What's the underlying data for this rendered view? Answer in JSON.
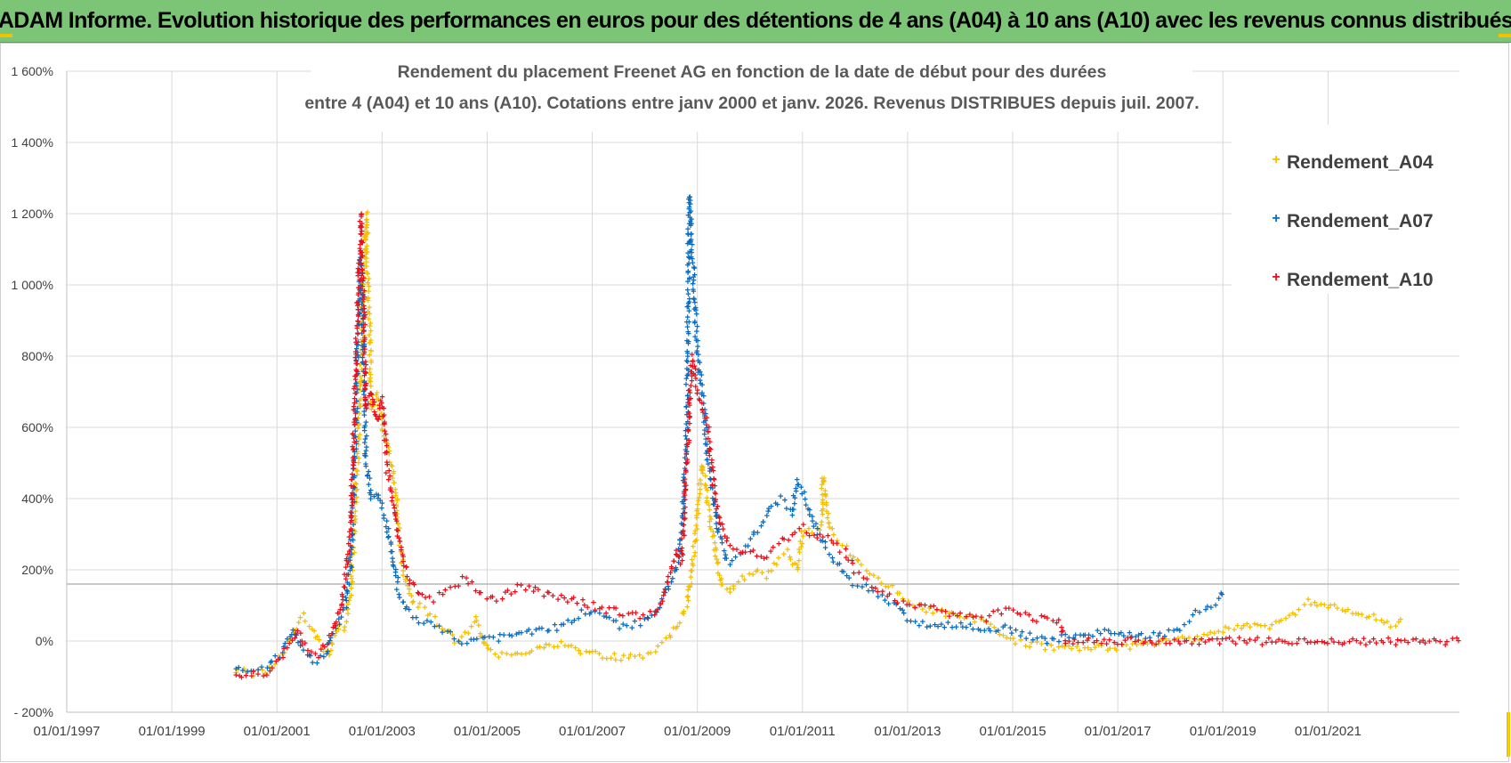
{
  "banner": {
    "text": "ADAM Informe. Evolution historique des performances en euros pour des détentions de 4 ans (A04) à 10 ans (A10) avec les revenus connus distribués"
  },
  "colors": {
    "banner_bg": "#7cc576",
    "corner_accent": "#f2c200",
    "A04": "#f5bf00",
    "A07": "#0a6cc0",
    "A10": "#e8101c"
  },
  "chart_data": {
    "type": "scatter",
    "title": "Rendement du placement Freenet AG en fonction de la date de début pour des durées",
    "title_line2": "entre 4 (A04) et 10 ans (A10).  Cotations entre janv 2000 et  janv. 2026. Revenus DISTRIBUES depuis juil. 2007.",
    "xlabel": "",
    "ylabel": "",
    "x_range": [
      1997.0,
      2023.5
    ],
    "ylim": [
      -200,
      1600
    ],
    "y_ticks": [
      -200,
      0,
      200,
      400,
      600,
      800,
      1000,
      1200,
      1400,
      1600
    ],
    "y_tick_labels": [
      "- 200%",
      "0%",
      "200%",
      "400%",
      "600%",
      "800%",
      "1 000%",
      "1 200%",
      "1 400%",
      "1 600%"
    ],
    "x_ticks": [
      1997,
      1999,
      2001,
      2003,
      2005,
      2007,
      2009,
      2011,
      2013,
      2015,
      2017,
      2019,
      2021
    ],
    "x_tick_labels": [
      "01/01/1997",
      "01/01/1999",
      "01/01/2001",
      "01/01/2003",
      "01/01/2005",
      "01/01/2007",
      "01/01/2009",
      "01/01/2011",
      "01/01/2013",
      "01/01/2015",
      "01/01/2017",
      "01/01/2019",
      "01/01/2021"
    ],
    "reference_line": 160,
    "grid": true,
    "marker": "+",
    "legend_position": "top-right",
    "series": [
      {
        "name": "Rendement_A04",
        "x": [
          2000.2,
          2000.5,
          2000.8,
          2001.1,
          2001.3,
          2001.5,
          2001.7,
          2001.9,
          2002.0,
          2002.1,
          2002.2,
          2002.3,
          2002.4,
          2002.45,
          2002.5,
          2002.55,
          2002.6,
          2002.7,
          2002.8,
          2002.9,
          2003.0,
          2003.1,
          2003.2,
          2003.3,
          2003.4,
          2003.5,
          2003.6,
          2003.8,
          2004.0,
          2004.2,
          2004.4,
          2004.6,
          2004.8,
          2005.0,
          2005.3,
          2005.6,
          2006.0,
          2006.4,
          2006.8,
          2007.2,
          2007.6,
          2007.9,
          2008.2,
          2008.4,
          2008.6,
          2008.8,
          2008.9,
          2009.0,
          2009.05,
          2009.1,
          2009.2,
          2009.3,
          2009.4,
          2009.5,
          2009.6,
          2009.7,
          2009.9,
          2010.1,
          2010.3,
          2010.5,
          2010.7,
          2010.9,
          2011.0,
          2011.2,
          2011.35,
          2011.4,
          2011.5,
          2011.7,
          2011.9,
          2012.2,
          2012.5,
          2012.8,
          2013.0,
          2013.3,
          2013.7,
          2014.0,
          2014.3,
          2014.6,
          2014.8,
          2015.0,
          2015.3,
          2015.6,
          2016.0,
          2016.5,
          2017.0,
          2017.5,
          2018.0,
          2018.5,
          2019.0,
          2019.4,
          2019.8,
          2020.2,
          2020.4,
          2020.6,
          2020.8,
          2021.0,
          2021.2,
          2021.4,
          2021.6,
          2021.8,
          2022.0,
          2022.2,
          2022.4
        ],
        "y": [
          -80,
          -90,
          -85,
          -40,
          20,
          70,
          30,
          -20,
          -40,
          20,
          50,
          40,
          120,
          250,
          400,
          550,
          750,
          1200,
          650,
          700,
          600,
          550,
          480,
          350,
          200,
          150,
          110,
          90,
          60,
          30,
          0,
          20,
          60,
          -30,
          -40,
          -30,
          -20,
          -10,
          -30,
          -40,
          -45,
          -40,
          -30,
          0,
          40,
          100,
          200,
          350,
          450,
          500,
          380,
          300,
          200,
          150,
          130,
          160,
          180,
          200,
          180,
          220,
          250,
          200,
          300,
          310,
          320,
          460,
          320,
          280,
          250,
          200,
          170,
          140,
          110,
          90,
          80,
          70,
          60,
          40,
          20,
          0,
          -10,
          -15,
          -20,
          -15,
          -15,
          -10,
          0,
          10,
          30,
          40,
          40,
          60,
          80,
          110,
          100,
          90,
          100,
          90,
          80,
          70,
          60,
          50,
          55
        ]
      },
      {
        "name": "Rendement_A07",
        "x": [
          2000.2,
          2000.5,
          2000.8,
          2001.1,
          2001.3,
          2001.5,
          2001.7,
          2001.9,
          2002.0,
          2002.1,
          2002.2,
          2002.3,
          2002.4,
          2002.45,
          2002.5,
          2002.55,
          2002.6,
          2002.7,
          2002.8,
          2002.9,
          2003.0,
          2003.1,
          2003.2,
          2003.3,
          2003.5,
          2003.7,
          2004.0,
          2004.3,
          2004.6,
          2004.9,
          2005.2,
          2005.6,
          2006.0,
          2006.4,
          2006.8,
          2007.2,
          2007.6,
          2007.9,
          2008.2,
          2008.4,
          2008.6,
          2008.7,
          2008.8,
          2008.85,
          2008.9,
          2009.0,
          2009.1,
          2009.2,
          2009.3,
          2009.4,
          2009.6,
          2009.8,
          2010.0,
          2010.2,
          2010.4,
          2010.6,
          2010.8,
          2010.9,
          2011.1,
          2011.3,
          2011.5,
          2011.7,
          2011.9,
          2012.2,
          2012.5,
          2012.8,
          2013.0,
          2013.3,
          2013.7,
          2014.0,
          2014.4,
          2014.8,
          2015.2,
          2015.6,
          2016.0,
          2016.4,
          2016.8,
          2017.2,
          2017.6,
          2017.9,
          2018.2,
          2018.5,
          2018.8,
          2019.0
        ],
        "y": [
          -80,
          -85,
          -80,
          -30,
          30,
          -30,
          -60,
          -40,
          0,
          30,
          60,
          100,
          200,
          400,
          600,
          900,
          1080,
          500,
          400,
          420,
          380,
          320,
          250,
          150,
          80,
          60,
          50,
          20,
          -10,
          20,
          10,
          20,
          30,
          40,
          80,
          70,
          40,
          50,
          80,
          140,
          200,
          300,
          600,
          1250,
          1100,
          800,
          700,
          500,
          420,
          300,
          220,
          240,
          280,
          320,
          380,
          400,
          360,
          450,
          380,
          300,
          250,
          210,
          170,
          150,
          130,
          100,
          60,
          50,
          40,
          50,
          30,
          40,
          20,
          0,
          10,
          20,
          30,
          20,
          15,
          20,
          40,
          80,
          100,
          140
        ]
      },
      {
        "name": "Rendement_A10",
        "x": [
          2000.2,
          2000.5,
          2000.8,
          2001.0,
          2001.2,
          2001.4,
          2001.6,
          2001.8,
          2002.0,
          2002.1,
          2002.2,
          2002.3,
          2002.4,
          2002.45,
          2002.5,
          2002.55,
          2002.6,
          2002.7,
          2002.8,
          2002.9,
          2003.0,
          2003.1,
          2003.2,
          2003.3,
          2003.5,
          2003.7,
          2004.0,
          2004.3,
          2004.6,
          2004.9,
          2005.2,
          2005.6,
          2006.0,
          2006.4,
          2006.8,
          2007.2,
          2007.6,
          2007.9,
          2008.2,
          2008.4,
          2008.6,
          2008.7,
          2008.8,
          2008.9,
          2009.0,
          2009.1,
          2009.2,
          2009.3,
          2009.4,
          2009.6,
          2009.8,
          2010.0,
          2010.2,
          2010.4,
          2010.6,
          2010.8,
          2011.0,
          2011.2,
          2011.4,
          2011.6,
          2011.8,
          2012.0,
          2012.3,
          2012.6,
          2012.9,
          2013.2,
          2013.5,
          2013.8,
          2014.1,
          2014.4,
          2014.7,
          2015.0,
          2015.3,
          2015.6,
          2015.9,
          2016.0,
          2017.0,
          2018.0,
          2019.0,
          2020.0,
          2021.0,
          2022.0,
          2023.0,
          2023.5
        ],
        "y": [
          -90,
          -95,
          -90,
          -60,
          -20,
          30,
          -30,
          -40,
          10,
          40,
          80,
          180,
          300,
          500,
          800,
          980,
          1200,
          650,
          700,
          620,
          680,
          480,
          400,
          300,
          180,
          130,
          120,
          150,
          180,
          130,
          120,
          150,
          140,
          120,
          110,
          90,
          80,
          70,
          80,
          150,
          250,
          220,
          500,
          800,
          700,
          650,
          600,
          450,
          350,
          270,
          250,
          260,
          230,
          250,
          280,
          300,
          320,
          290,
          300,
          280,
          250,
          200,
          160,
          130,
          110,
          100,
          90,
          80,
          70,
          60,
          80,
          90,
          70,
          60,
          50,
          0,
          0,
          0,
          0,
          0,
          0,
          0,
          0,
          0
        ]
      }
    ]
  }
}
